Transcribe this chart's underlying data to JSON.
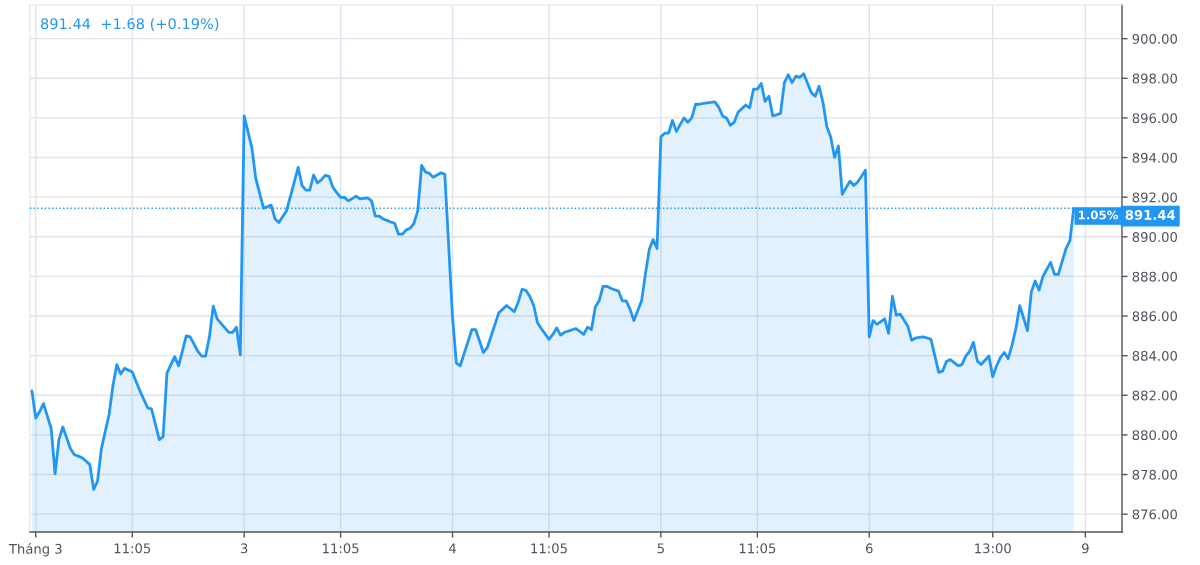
{
  "chart_data": {
    "type": "area",
    "color": "#2196f3",
    "categories": [
      null,
      "Tháng 3",
      null,
      null,
      null,
      null,
      null,
      null,
      null,
      null,
      null,
      null,
      null,
      null,
      null,
      null,
      null,
      null,
      null,
      null,
      null,
      null,
      null,
      null,
      null,
      null,
      "11:05",
      null,
      null,
      null,
      null,
      null,
      null,
      null,
      null,
      null,
      null,
      null,
      null,
      null,
      null,
      null,
      null,
      null,
      null,
      null,
      null,
      null,
      null,
      null,
      null,
      null,
      null,
      null,
      null,
      "3",
      null,
      null,
      null,
      null,
      null,
      null,
      null,
      null,
      null,
      null,
      null,
      null,
      null,
      null,
      null,
      null,
      null,
      null,
      null,
      null,
      null,
      null,
      null,
      null,
      "11:05",
      null,
      null,
      null,
      null,
      null,
      null,
      null,
      null,
      null,
      null,
      null,
      null,
      null,
      null,
      null,
      null,
      null,
      null,
      null,
      null,
      null,
      null,
      null,
      null,
      null,
      null,
      null,
      null,
      "4",
      null,
      null,
      null,
      null,
      null,
      null,
      null,
      null,
      null,
      null,
      null,
      null,
      null,
      null,
      null,
      null,
      null,
      null,
      null,
      null,
      null,
      null,
      null,
      null,
      "11:05",
      null,
      null,
      null,
      null,
      null,
      null,
      null,
      null,
      null,
      null,
      null,
      null,
      null,
      null,
      null,
      null,
      null,
      null,
      null,
      null,
      null,
      null,
      null,
      null,
      null,
      null,
      null,
      null,
      "5",
      null,
      null,
      null,
      null,
      null,
      null,
      null,
      null,
      null,
      null,
      null,
      null,
      null,
      null,
      null,
      null,
      null,
      null,
      null,
      null,
      null,
      null,
      null,
      null,
      "11:05",
      null,
      null,
      null,
      null,
      null,
      null,
      null,
      null,
      null,
      null,
      null,
      null,
      null,
      null,
      null,
      null,
      null,
      null,
      null,
      null,
      null,
      null,
      null,
      null,
      null,
      null,
      null,
      null,
      "6",
      null,
      null,
      null,
      null,
      null,
      null,
      null,
      null,
      null,
      null,
      null,
      null,
      null,
      null,
      null,
      null,
      null,
      null,
      null,
      null,
      null,
      null,
      null,
      null,
      null,
      null,
      null,
      null,
      null,
      null,
      null,
      "13:00",
      null,
      null,
      null,
      null,
      null,
      null,
      null,
      null,
      null,
      null,
      null,
      null,
      null,
      null,
      null,
      null,
      null,
      null,
      null,
      null,
      null,
      null,
      null,
      "9",
      null,
      null,
      null,
      null,
      null,
      null,
      null,
      null,
      null
    ],
    "values": [
      882.22,
      880.85,
      881.18,
      881.58,
      880.95,
      880.31,
      878.03,
      879.76,
      880.4,
      879.85,
      879.3,
      879.0,
      878.93,
      878.85,
      878.68,
      878.5,
      877.25,
      877.67,
      879.3,
      880.17,
      881.03,
      882.5,
      883.55,
      883.07,
      883.36,
      883.27,
      883.18,
      882.7,
      882.22,
      881.79,
      881.36,
      881.31,
      880.54,
      879.76,
      879.91,
      883.13,
      883.54,
      883.95,
      883.49,
      884.24,
      885.0,
      884.95,
      884.59,
      884.22,
      883.98,
      883.98,
      884.95,
      886.5,
      885.86,
      885.63,
      885.4,
      885.18,
      885.18,
      885.44,
      884.04,
      896.1,
      895.3,
      894.5,
      892.96,
      892.2,
      891.45,
      891.52,
      891.6,
      890.9,
      890.72,
      891.02,
      891.32,
      892.05,
      892.77,
      893.5,
      892.59,
      892.36,
      892.36,
      893.12,
      892.72,
      892.87,
      893.1,
      893.05,
      892.5,
      892.23,
      891.99,
      891.99,
      891.81,
      891.93,
      892.05,
      891.92,
      891.94,
      891.96,
      891.81,
      891.04,
      891.04,
      890.9,
      890.83,
      890.75,
      890.68,
      890.13,
      890.13,
      890.35,
      890.43,
      890.68,
      891.32,
      893.6,
      893.27,
      893.2,
      893.01,
      893.12,
      893.23,
      893.16,
      889.56,
      885.95,
      883.62,
      883.49,
      884.1,
      884.7,
      885.31,
      885.31,
      884.74,
      884.16,
      884.4,
      884.99,
      885.58,
      886.17,
      886.35,
      886.53,
      886.38,
      886.22,
      886.68,
      887.35,
      887.3,
      887.0,
      886.56,
      885.68,
      885.37,
      885.1,
      884.82,
      885.07,
      885.4,
      885.04,
      885.18,
      885.24,
      885.31,
      885.37,
      885.22,
      885.07,
      885.44,
      885.31,
      886.46,
      886.77,
      887.5,
      887.5,
      887.4,
      887.33,
      887.26,
      886.77,
      886.77,
      886.35,
      885.77,
      886.27,
      886.77,
      888.13,
      889.37,
      889.86,
      889.41,
      895.05,
      895.23,
      895.23,
      895.87,
      895.32,
      895.66,
      896.0,
      895.78,
      896.0,
      896.69,
      896.69,
      896.73,
      896.76,
      896.78,
      896.81,
      896.54,
      896.1,
      896.0,
      895.63,
      895.78,
      896.29,
      896.47,
      896.65,
      896.51,
      897.45,
      897.45,
      897.74,
      896.83,
      897.09,
      896.1,
      896.16,
      896.23,
      897.78,
      898.18,
      897.78,
      898.11,
      898.05,
      898.23,
      897.75,
      897.27,
      897.09,
      897.6,
      896.78,
      895.56,
      895.05,
      894.01,
      894.59,
      892.14,
      892.48,
      892.81,
      892.59,
      892.77,
      893.06,
      893.36,
      884.95,
      885.77,
      885.58,
      885.72,
      885.86,
      885.13,
      887.0,
      886.04,
      886.1,
      885.8,
      885.49,
      884.77,
      884.89,
      884.92,
      884.95,
      884.89,
      884.82,
      883.99,
      883.16,
      883.22,
      883.71,
      883.8,
      883.65,
      883.49,
      883.55,
      883.98,
      884.22,
      884.67,
      883.73,
      883.55,
      883.77,
      883.98,
      882.94,
      883.49,
      883.91,
      884.16,
      883.85,
      884.53,
      885.37,
      886.53,
      885.9,
      885.26,
      887.22,
      887.77,
      887.31,
      887.99,
      888.35,
      888.71,
      888.1,
      888.1,
      888.76,
      889.41,
      889.81,
      891.44,
      null,
      null,
      null,
      null,
      null,
      null,
      null,
      null,
      null,
      null,
      null,
      null
    ],
    "ylim": [
      875.1,
      901.7
    ],
    "yticks": [
      {
        "value": 876,
        "label": "876.00"
      },
      {
        "value": 878,
        "label": "878.00"
      },
      {
        "value": 880,
        "label": "880.00"
      },
      {
        "value": 882,
        "label": "882.00"
      },
      {
        "value": 884,
        "label": "884.00"
      },
      {
        "value": 886,
        "label": "886.00"
      },
      {
        "value": 888,
        "label": "888.00"
      },
      {
        "value": 890,
        "label": "890.00"
      },
      {
        "value": 892,
        "label": "892.00"
      },
      {
        "value": 894,
        "label": "894.00"
      },
      {
        "value": 896,
        "label": "896.00"
      },
      {
        "value": 898,
        "label": "898.00"
      },
      {
        "value": 900,
        "label": "900.00"
      }
    ],
    "grid": true,
    "ref_lines": [
      {
        "axis": "y",
        "value": 891.44,
        "label": "891.44",
        "color": "#2196f3",
        "line_style": "dotted"
      }
    ],
    "annotations": [
      "891.44  +1.68 (+0.19%)",
      {
        "text": "1.05%",
        "y": 891.44
      }
    ]
  }
}
